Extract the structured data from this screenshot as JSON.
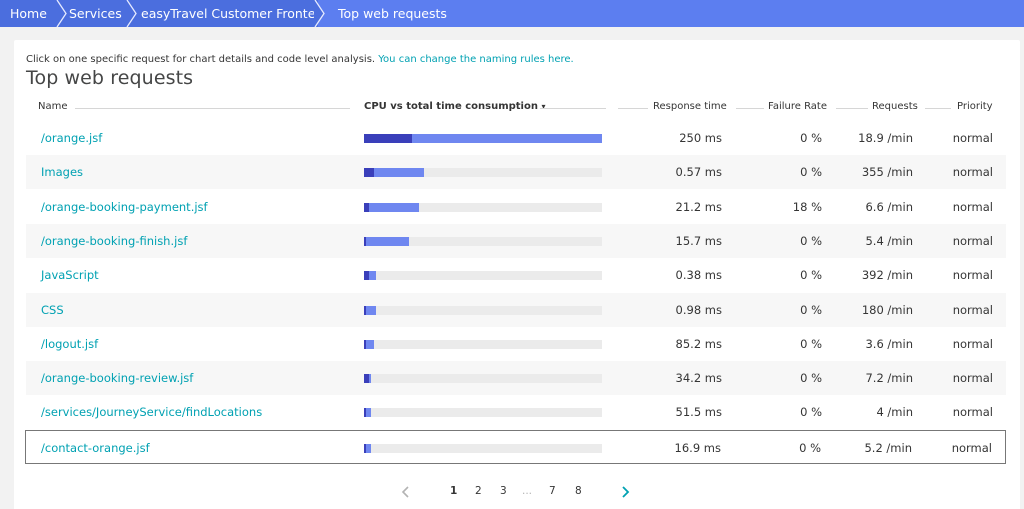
{
  "breadcrumb": [
    {
      "label": "Home",
      "active": false
    },
    {
      "label": "Services",
      "active": false
    },
    {
      "label": "easyTravel Customer Frontend",
      "active": false
    },
    {
      "label": "Top web requests",
      "active": true
    }
  ],
  "intro": {
    "text": "Click on one specific request for chart details and code level analysis.",
    "link": "You can change the naming rules here."
  },
  "title": "Top web requests",
  "columns": {
    "name": "Name",
    "cpu": "CPU vs total time consumption",
    "sort_indicator": "▾",
    "response": "Response time",
    "failure": "Failure Rate",
    "requests": "Requests",
    "priority": "Priority"
  },
  "rows": [
    {
      "name": "/orange.jsf",
      "cpu_fraction": 0.2,
      "total_fraction": 1.0,
      "response": "250 ms",
      "failure": "0 %",
      "requests": "18.9 /min",
      "priority": "normal"
    },
    {
      "name": "Images",
      "cpu_fraction": 0.04,
      "total_fraction": 0.25,
      "response": "0.57 ms",
      "failure": "0 %",
      "requests": "355 /min",
      "priority": "normal"
    },
    {
      "name": "/orange-booking-payment.jsf",
      "cpu_fraction": 0.02,
      "total_fraction": 0.23,
      "response": "21.2 ms",
      "failure": "18 %",
      "requests": "6.6 /min",
      "priority": "normal"
    },
    {
      "name": "/orange-booking-finish.jsf",
      "cpu_fraction": 0.01,
      "total_fraction": 0.19,
      "response": "15.7 ms",
      "failure": "0 %",
      "requests": "5.4 /min",
      "priority": "normal"
    },
    {
      "name": "JavaScript",
      "cpu_fraction": 0.02,
      "total_fraction": 0.05,
      "response": "0.38 ms",
      "failure": "0 %",
      "requests": "392 /min",
      "priority": "normal"
    },
    {
      "name": "CSS",
      "cpu_fraction": 0.01,
      "total_fraction": 0.05,
      "response": "0.98 ms",
      "failure": "0 %",
      "requests": "180 /min",
      "priority": "normal"
    },
    {
      "name": "/logout.jsf",
      "cpu_fraction": 0.01,
      "total_fraction": 0.04,
      "response": "85.2 ms",
      "failure": "0 %",
      "requests": "3.6 /min",
      "priority": "normal"
    },
    {
      "name": "/orange-booking-review.jsf",
      "cpu_fraction": 0.02,
      "total_fraction": 0.03,
      "response": "34.2 ms",
      "failure": "0 %",
      "requests": "7.2 /min",
      "priority": "normal"
    },
    {
      "name": "/services/JourneyService/findLocations",
      "cpu_fraction": 0.005,
      "total_fraction": 0.03,
      "response": "51.5 ms",
      "failure": "0 %",
      "requests": "4 /min",
      "priority": "normal"
    },
    {
      "name": "/contact-orange.jsf",
      "cpu_fraction": 0.01,
      "total_fraction": 0.03,
      "response": "16.9 ms",
      "failure": "0 %",
      "requests": "5.2 /min",
      "priority": "normal",
      "selected": true
    }
  ],
  "pagination": {
    "pages": [
      "1",
      "2",
      "3",
      "...",
      "7",
      "8"
    ],
    "current": "1"
  },
  "colors": {
    "breadcrumb_bg": "#4b6ede",
    "breadcrumb_active": "#5c7ef0",
    "link": "#00a1b2",
    "cpu_bar": "#3a3fba",
    "total_bar": "#6f87f0",
    "bar_track": "#ebebeb"
  }
}
